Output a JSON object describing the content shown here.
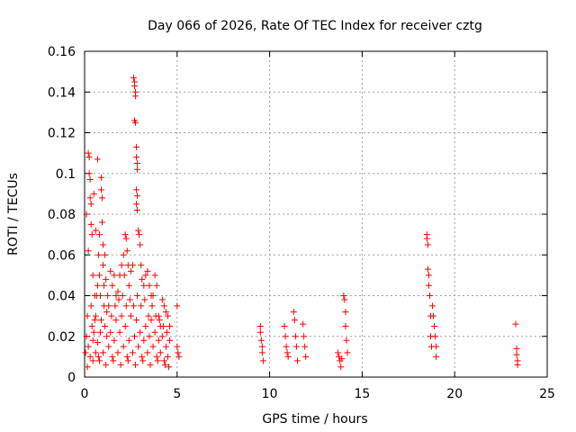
{
  "chart_data": {
    "type": "scatter",
    "title": "Day 066 of 2026, Rate Of TEC Index for receiver cztg",
    "xlabel": "GPS time / hours",
    "ylabel": "ROTI / TECUs",
    "xlim": [
      0,
      25
    ],
    "ylim": [
      0,
      0.16
    ],
    "xticks": [
      0,
      5,
      10,
      15,
      20,
      25
    ],
    "xtick_labels": [
      "0",
      "5",
      "10",
      "15",
      "20",
      "25"
    ],
    "yticks": [
      0,
      0.02,
      0.04,
      0.06,
      0.08,
      0.1,
      0.12,
      0.14,
      0.16
    ],
    "ytick_labels": [
      "0",
      "0.02",
      "0.04",
      "0.06",
      "0.08",
      "0.1",
      "0.12",
      "0.14",
      "0.16"
    ],
    "grid": true,
    "marker": "plus",
    "color": "#ff0000",
    "points": [
      [
        0.05,
        0.012
      ],
      [
        0.1,
        0.02
      ],
      [
        0.1,
        0.08
      ],
      [
        0.15,
        0.03
      ],
      [
        0.2,
        0.062
      ],
      [
        0.2,
        0.11
      ],
      [
        0.25,
        0.108
      ],
      [
        0.25,
        0.1
      ],
      [
        0.3,
        0.097
      ],
      [
        0.3,
        0.088
      ],
      [
        0.35,
        0.085
      ],
      [
        0.35,
        0.075
      ],
      [
        0.4,
        0.07
      ],
      [
        0.4,
        0.025
      ],
      [
        0.45,
        0.05
      ],
      [
        0.45,
        0.018
      ],
      [
        0.5,
        0.09
      ],
      [
        0.55,
        0.04
      ],
      [
        0.6,
        0.03
      ],
      [
        0.6,
        0.072
      ],
      [
        0.7,
        0.107
      ],
      [
        0.7,
        0.045
      ],
      [
        0.75,
        0.06
      ],
      [
        0.8,
        0.07
      ],
      [
        0.8,
        0.05
      ],
      [
        0.85,
        0.04
      ],
      [
        0.9,
        0.098
      ],
      [
        0.9,
        0.092
      ],
      [
        0.95,
        0.088
      ],
      [
        0.95,
        0.076
      ],
      [
        1.0,
        0.065
      ],
      [
        1.0,
        0.055
      ],
      [
        1.05,
        0.045
      ],
      [
        1.1,
        0.06
      ],
      [
        1.15,
        0.048
      ],
      [
        1.2,
        0.02
      ],
      [
        1.3,
        0.035
      ],
      [
        1.4,
        0.052
      ],
      [
        1.5,
        0.045
      ],
      [
        1.6,
        0.05
      ],
      [
        1.7,
        0.04
      ],
      [
        1.8,
        0.042
      ],
      [
        1.9,
        0.05
      ],
      [
        2.0,
        0.055
      ],
      [
        2.1,
        0.06
      ],
      [
        2.15,
        0.05
      ],
      [
        2.2,
        0.07
      ],
      [
        2.25,
        0.068
      ],
      [
        2.3,
        0.062
      ],
      [
        2.35,
        0.055
      ],
      [
        2.4,
        0.045
      ],
      [
        2.5,
        0.052
      ],
      [
        2.6,
        0.055
      ],
      [
        2.65,
        0.147
      ],
      [
        2.7,
        0.145
      ],
      [
        2.7,
        0.143
      ],
      [
        2.75,
        0.14
      ],
      [
        2.75,
        0.138
      ],
      [
        2.7,
        0.126
      ],
      [
        2.75,
        0.125
      ],
      [
        2.8,
        0.113
      ],
      [
        2.8,
        0.108
      ],
      [
        2.85,
        0.105
      ],
      [
        2.85,
        0.102
      ],
      [
        2.8,
        0.092
      ],
      [
        2.85,
        0.089
      ],
      [
        2.8,
        0.085
      ],
      [
        2.85,
        0.082
      ],
      [
        2.9,
        0.072
      ],
      [
        2.95,
        0.07
      ],
      [
        3.0,
        0.065
      ],
      [
        3.05,
        0.055
      ],
      [
        3.1,
        0.048
      ],
      [
        3.2,
        0.045
      ],
      [
        3.3,
        0.05
      ],
      [
        3.4,
        0.052
      ],
      [
        3.5,
        0.045
      ],
      [
        3.6,
        0.04
      ],
      [
        3.7,
        0.04
      ],
      [
        3.8,
        0.05
      ],
      [
        3.9,
        0.045
      ],
      [
        4.0,
        0.03
      ],
      [
        4.1,
        0.025
      ],
      [
        4.2,
        0.038
      ],
      [
        4.3,
        0.035
      ],
      [
        4.4,
        0.032
      ],
      [
        4.5,
        0.03
      ],
      [
        4.6,
        0.025
      ],
      [
        5.0,
        0.035
      ],
      [
        5.0,
        0.015
      ],
      [
        5.05,
        0.012
      ],
      [
        5.1,
        0.01
      ],
      [
        9.5,
        0.025
      ],
      [
        9.5,
        0.022
      ],
      [
        9.55,
        0.018
      ],
      [
        9.6,
        0.015
      ],
      [
        9.6,
        0.012
      ],
      [
        9.65,
        0.008
      ],
      [
        10.8,
        0.025
      ],
      [
        10.85,
        0.02
      ],
      [
        10.9,
        0.015
      ],
      [
        10.95,
        0.012
      ],
      [
        11.0,
        0.01
      ],
      [
        11.3,
        0.032
      ],
      [
        11.35,
        0.028
      ],
      [
        11.4,
        0.02
      ],
      [
        11.45,
        0.015
      ],
      [
        11.5,
        0.008
      ],
      [
        11.8,
        0.026
      ],
      [
        11.85,
        0.02
      ],
      [
        11.9,
        0.015
      ],
      [
        11.95,
        0.01
      ],
      [
        13.7,
        0.012
      ],
      [
        13.75,
        0.01
      ],
      [
        13.8,
        0.008
      ],
      [
        13.85,
        0.005
      ],
      [
        13.9,
        0.009
      ],
      [
        14.0,
        0.04
      ],
      [
        14.05,
        0.038
      ],
      [
        14.1,
        0.032
      ],
      [
        14.1,
        0.025
      ],
      [
        14.15,
        0.018
      ],
      [
        14.2,
        0.012
      ],
      [
        18.5,
        0.07
      ],
      [
        18.5,
        0.068
      ],
      [
        18.55,
        0.065
      ],
      [
        18.55,
        0.053
      ],
      [
        18.6,
        0.05
      ],
      [
        18.6,
        0.045
      ],
      [
        18.65,
        0.04
      ],
      [
        18.7,
        0.03
      ],
      [
        18.7,
        0.02
      ],
      [
        18.75,
        0.015
      ],
      [
        18.8,
        0.035
      ],
      [
        18.85,
        0.03
      ],
      [
        18.9,
        0.025
      ],
      [
        18.95,
        0.02
      ],
      [
        19.0,
        0.015
      ],
      [
        19.0,
        0.01
      ],
      [
        23.3,
        0.026
      ],
      [
        23.35,
        0.014
      ],
      [
        23.35,
        0.011
      ],
      [
        23.4,
        0.008
      ],
      [
        23.4,
        0.006
      ],
      [
        0.2,
        0.015
      ],
      [
        0.3,
        0.01
      ],
      [
        0.5,
        0.022
      ],
      [
        0.6,
        0.012
      ],
      [
        0.7,
        0.017
      ],
      [
        0.8,
        0.008
      ],
      [
        0.9,
        0.028
      ],
      [
        1.0,
        0.012
      ],
      [
        1.1,
        0.025
      ],
      [
        1.2,
        0.032
      ],
      [
        1.3,
        0.015
      ],
      [
        1.4,
        0.022
      ],
      [
        1.5,
        0.01
      ],
      [
        1.6,
        0.018
      ],
      [
        1.7,
        0.028
      ],
      [
        1.8,
        0.012
      ],
      [
        1.9,
        0.022
      ],
      [
        2.0,
        0.03
      ],
      [
        2.1,
        0.015
      ],
      [
        2.2,
        0.025
      ],
      [
        2.3,
        0.01
      ],
      [
        2.4,
        0.018
      ],
      [
        2.5,
        0.03
      ],
      [
        2.6,
        0.012
      ],
      [
        2.7,
        0.02
      ],
      [
        2.8,
        0.028
      ],
      [
        2.9,
        0.015
      ],
      [
        3.0,
        0.022
      ],
      [
        3.1,
        0.01
      ],
      [
        3.2,
        0.018
      ],
      [
        3.3,
        0.025
      ],
      [
        3.4,
        0.012
      ],
      [
        3.5,
        0.02
      ],
      [
        3.6,
        0.028
      ],
      [
        3.7,
        0.015
      ],
      [
        3.8,
        0.022
      ],
      [
        3.9,
        0.01
      ],
      [
        4.0,
        0.018
      ],
      [
        4.1,
        0.012
      ],
      [
        4.2,
        0.02
      ],
      [
        4.3,
        0.008
      ],
      [
        4.4,
        0.015
      ],
      [
        4.5,
        0.01
      ],
      [
        4.6,
        0.018
      ],
      [
        0.35,
        0.035
      ],
      [
        0.55,
        0.028
      ],
      [
        0.65,
        0.04
      ],
      [
        0.85,
        0.022
      ],
      [
        1.05,
        0.035
      ],
      [
        1.25,
        0.04
      ],
      [
        1.45,
        0.03
      ],
      [
        1.65,
        0.035
      ],
      [
        1.85,
        0.038
      ],
      [
        2.05,
        0.04
      ],
      [
        2.25,
        0.035
      ],
      [
        2.45,
        0.038
      ],
      [
        2.65,
        0.035
      ],
      [
        2.85,
        0.04
      ],
      [
        3.05,
        0.035
      ],
      [
        3.25,
        0.038
      ],
      [
        3.45,
        0.03
      ],
      [
        3.65,
        0.035
      ],
      [
        3.85,
        0.03
      ],
      [
        4.05,
        0.028
      ],
      [
        4.25,
        0.025
      ],
      [
        4.45,
        0.022
      ],
      [
        0.15,
        0.005
      ],
      [
        0.45,
        0.008
      ],
      [
        0.75,
        0.01
      ],
      [
        1.15,
        0.006
      ],
      [
        1.55,
        0.008
      ],
      [
        1.95,
        0.006
      ],
      [
        2.35,
        0.008
      ],
      [
        2.75,
        0.006
      ],
      [
        3.15,
        0.008
      ],
      [
        3.55,
        0.006
      ],
      [
        3.95,
        0.008
      ],
      [
        4.35,
        0.006
      ],
      [
        4.55,
        0.005
      ]
    ]
  }
}
